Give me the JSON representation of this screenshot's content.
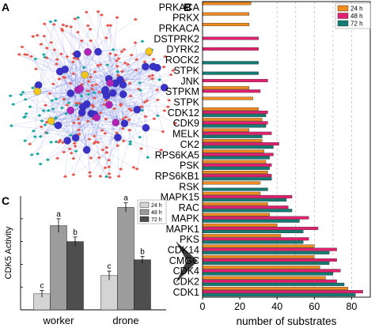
{
  "panels": {
    "a": "A",
    "b": "B",
    "c": "C"
  },
  "network": {
    "type": "network",
    "node_colors": {
      "kinase_blue": "#3a32c8",
      "kinase_purple": "#b422b4",
      "kinase_yellow": "#f2c61a",
      "substrate_red": "#e8554a",
      "substrate_teal": "#18a8a0",
      "edge": "#5a6adf"
    }
  },
  "chart_data": [
    {
      "type": "bar",
      "orientation": "horizontal",
      "xlabel": "number of substrates",
      "xlim": [
        0,
        90
      ],
      "xticks": [
        0,
        20,
        40,
        60,
        80
      ],
      "legend_position": "top-right",
      "grid": "dashed vertical at 40, 50, 60, 70, 80",
      "categories": [
        "PRKACA",
        "PRKX",
        "PRKACA",
        "DSTPRK2",
        "DYRK2",
        "ROCK2",
        "STPK",
        "JNK",
        "STPKM",
        "STPK",
        "CDK12",
        "CDK9",
        "MELK",
        "CK2",
        "RPS6KA5",
        "PSK",
        "RPS6KB1",
        "RSK",
        "MAPK15",
        "RAC",
        "MAPK",
        "MAPK1",
        "PKS",
        "CDK14",
        "CMGC",
        "CDK4",
        "CDK2",
        "CDK1"
      ],
      "series": [
        {
          "name": "24 h",
          "color": "#f08a1c",
          "values": [
            26,
            25,
            25,
            0,
            0,
            0,
            0,
            0,
            25,
            27,
            30,
            32,
            25,
            32,
            33,
            34,
            35,
            31,
            31,
            35,
            36,
            40,
            42,
            60,
            60,
            63,
            66,
            78
          ]
        },
        {
          "name": "48 h",
          "color": "#e0206e",
          "values": [
            0,
            0,
            0,
            30,
            30,
            0,
            0,
            35,
            31,
            0,
            35,
            35,
            37,
            41,
            38,
            37,
            37,
            0,
            48,
            46,
            57,
            62,
            57,
            72,
            72,
            74,
            72,
            86
          ]
        },
        {
          "name": "72 h",
          "color": "#147a74",
          "values": [
            0,
            0,
            0,
            0,
            0,
            30,
            30,
            0,
            0,
            0,
            34,
            34,
            32,
            38,
            36,
            36,
            37,
            35,
            45,
            48,
            52,
            54,
            54,
            68,
            68,
            70,
            76,
            82
          ]
        }
      ]
    },
    {
      "type": "bar",
      "ylabel": "CDK5 Activity",
      "ylim": [
        0,
        100
      ],
      "legend_position": "top-right",
      "categories": [
        "worker",
        "drone"
      ],
      "series": [
        {
          "name": "24 h",
          "color": "#d4d4d4",
          "values": [
            14,
            30
          ]
        },
        {
          "name": "48 h",
          "color": "#9c9c9c",
          "values": [
            74,
            90
          ]
        },
        {
          "name": "72 h",
          "color": "#4e4e4e",
          "values": [
            60,
            44
          ]
        }
      ],
      "errors": [
        [
          3,
          6,
          4
        ],
        [
          4,
          4,
          3
        ]
      ],
      "significance_letters": [
        [
          "c",
          "a",
          "b"
        ],
        [
          "c",
          "a",
          "b"
        ]
      ]
    }
  ]
}
